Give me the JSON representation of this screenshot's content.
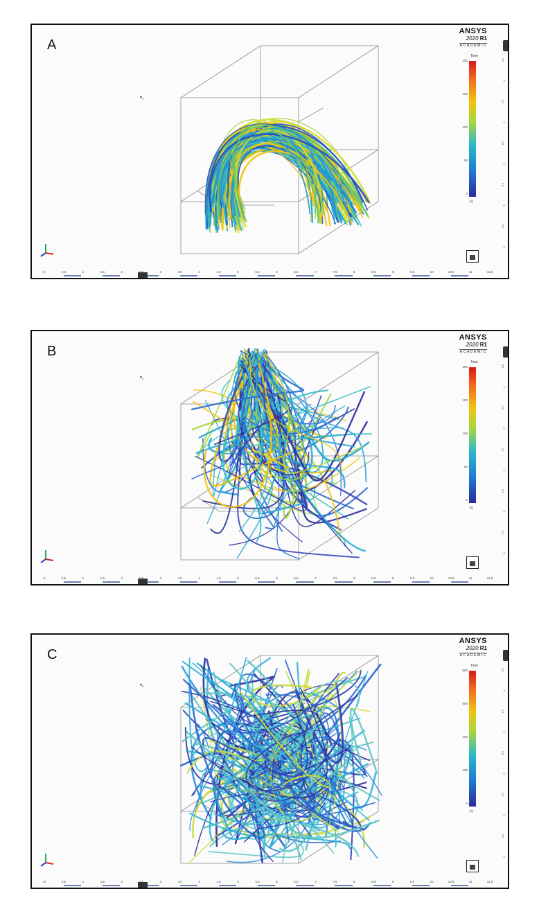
{
  "panels": [
    {
      "label": "A",
      "legend": {
        "ticks": [
          "200",
          "150",
          "100",
          "50",
          "0"
        ]
      },
      "colors": [
        "#f2c40f",
        "#d4dc2a",
        "#a6d63d",
        "#66c46a",
        "#2bb8c9",
        "#1f9ad6",
        "#2452c3"
      ]
    },
    {
      "label": "B",
      "legend": {
        "ticks": [
          "200",
          "150",
          "100",
          "50",
          "0"
        ]
      },
      "colors": [
        "#2b2b9a",
        "#3548b8",
        "#2f6fd0",
        "#27a9d6",
        "#36c0c9",
        "#a6d63d",
        "#f2c40f"
      ]
    },
    {
      "label": "C",
      "legend": {
        "ticks": [
          "800",
          "600",
          "400",
          "200",
          "0"
        ]
      },
      "colors": [
        "#2b2b9a",
        "#2f3fb3",
        "#2b63cd",
        "#2b8fd8",
        "#2fb2d8",
        "#5cc7c4",
        "#c9d93b"
      ]
    }
  ],
  "logo": {
    "brand": "ANSYS",
    "version": "2020",
    "release": "R1",
    "edition": "ACADEMIC"
  },
  "legend_title": "Time",
  "legend_unit": "[s]",
  "right_ticks": [
    "4.5",
    "4",
    "3.5",
    "3",
    "2.5",
    "2",
    "1.5",
    "1",
    "0.5",
    "0"
  ],
  "ruler": [
    "m",
    "0.5",
    "1",
    "1.5",
    "2",
    "2.5",
    "3",
    "3.5",
    "4",
    "4.5",
    "5",
    "5.5",
    "6",
    "6.5",
    "7",
    "7.5",
    "8",
    "8.5",
    "9",
    "9.5",
    "10",
    "10.5",
    "11",
    "11.5"
  ],
  "colors": {
    "frame": "#111111",
    "background": "#fbfbfc",
    "ruler_segment": "#6b7fb3"
  }
}
